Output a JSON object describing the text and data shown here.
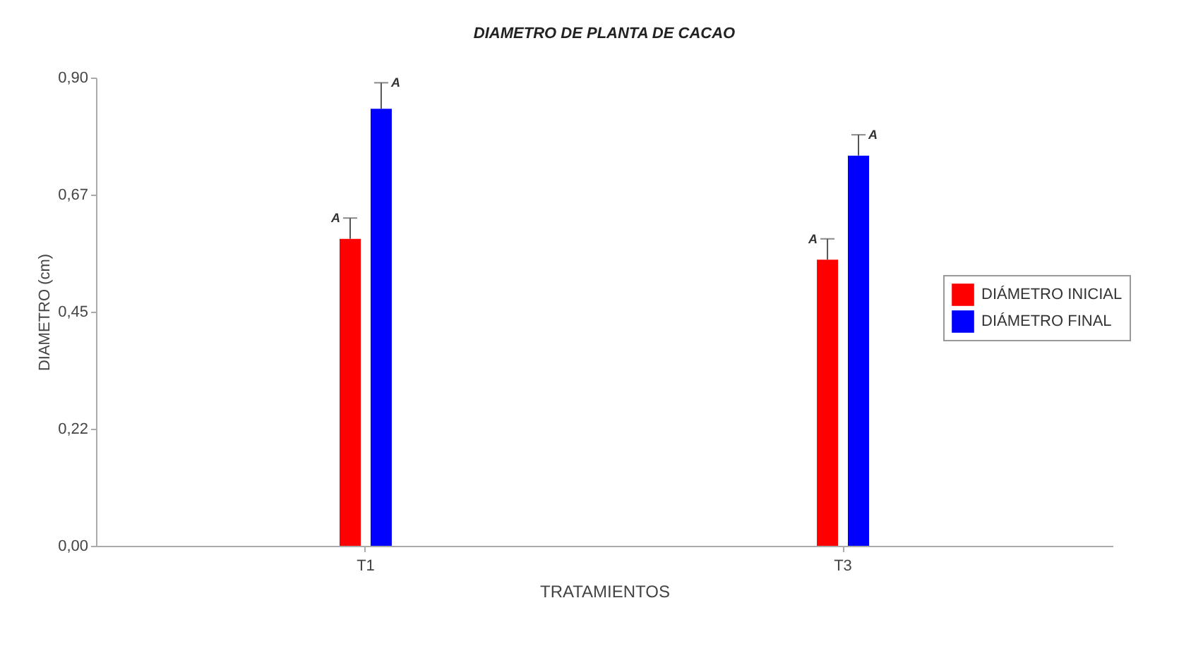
{
  "chart_data": {
    "type": "bar",
    "title": "DIAMETRO DE PLANTA DE CACAO",
    "xlabel": "TRATAMIENTOS",
    "ylabel": "DIAMETRO (cm)",
    "categories": [
      "T1",
      "T3"
    ],
    "series": [
      {
        "name": "DIÁMETRO INICIAL",
        "color": "#ff0000",
        "values": [
          0.59,
          0.55
        ],
        "errors": [
          [
            0.59,
            0.63
          ],
          [
            0.55,
            0.59
          ]
        ]
      },
      {
        "name": "DIÁMETRO FINAL",
        "color": "#0000ff",
        "values": [
          0.84,
          0.75
        ],
        "errors": [
          [
            0.84,
            0.89
          ],
          [
            0.75,
            0.79
          ]
        ]
      }
    ],
    "ylim": [
      0,
      0.9
    ],
    "yticks": [
      {
        "value": 0,
        "label": "0,00"
      },
      {
        "value": 0.225,
        "label": "0,22"
      },
      {
        "value": 0.45,
        "label": "0,45"
      },
      {
        "value": 0.675,
        "label": "0,67"
      },
      {
        "value": 0.9,
        "label": "0,90"
      }
    ],
    "annotations": [
      "A",
      "A",
      "A",
      "A"
    ],
    "legend": "right",
    "grid": false
  }
}
